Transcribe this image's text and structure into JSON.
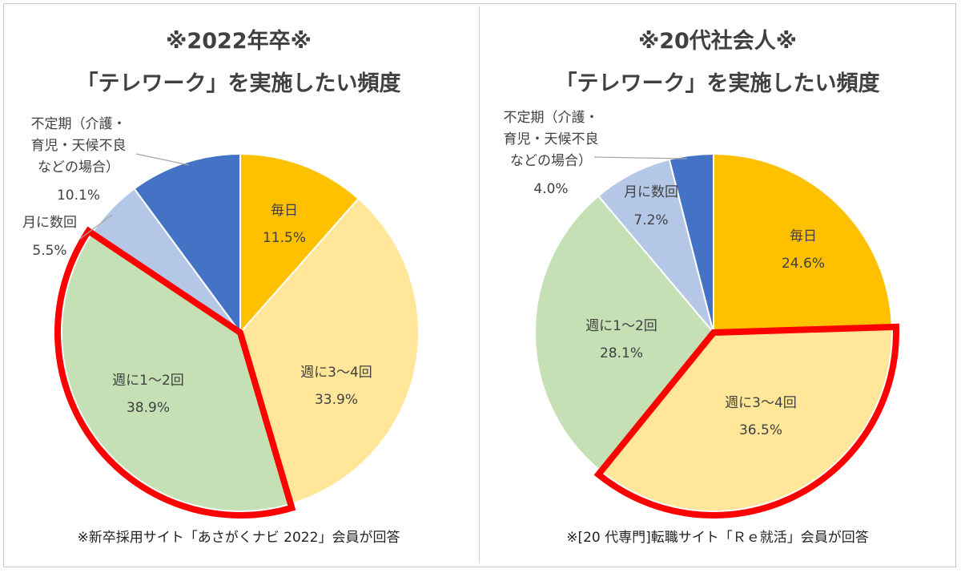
{
  "chart_data": [
    {
      "type": "pie",
      "title": "※2022年卒※",
      "subtitle": "「テレワーク」を実施したい頻度",
      "footnote": "※新卒採用サイト「あさがくナビ 2022」会員が回答",
      "labels": [
        "毎日",
        "週に3～4回",
        "週に1～2回",
        "月に数回",
        "不定期（介護・育児・天候不良などの場合）"
      ],
      "label_lines": [
        [
          "毎日"
        ],
        [
          "週に3～4回"
        ],
        [
          "週に1～2回"
        ],
        [
          "月に数回"
        ],
        [
          "不定期（介護・",
          "育児・天候不良",
          "などの場合）"
        ]
      ],
      "values": [
        11.5,
        33.9,
        38.9,
        5.5,
        10.1
      ],
      "value_labels": [
        "11.5%",
        "33.9%",
        "38.9%",
        "5.5%",
        "10.1%"
      ],
      "colors": [
        "#FFC000",
        "#FFE699",
        "#C5E0B4",
        "#B4C7E7",
        "#4472C4"
      ],
      "highlighted": "週に1～2回",
      "highlight_color": "#FF0000"
    },
    {
      "type": "pie",
      "title": "※20代社会人※",
      "subtitle": "「テレワーク」を実施したい頻度",
      "footnote": "※[20 代専門]転職サイト「Ｒｅ就活」会員が回答",
      "labels": [
        "毎日",
        "週に3～4回",
        "週に1～2回",
        "月に数回",
        "不定期（介護・育児・天候不良などの場合）"
      ],
      "label_lines": [
        [
          "毎日"
        ],
        [
          "週に3～4回"
        ],
        [
          "週に1～2回"
        ],
        [
          "月に数回"
        ],
        [
          "不定期（介護・",
          "育児・天候不良",
          "などの場合）"
        ]
      ],
      "values": [
        24.6,
        36.5,
        28.1,
        7.2,
        4.0
      ],
      "value_labels": [
        "24.6%",
        "36.5%",
        "28.1%",
        "7.2%",
        "4.0%"
      ],
      "colors": [
        "#FFC000",
        "#FFE699",
        "#C5E0B4",
        "#B4C7E7",
        "#4472C4"
      ],
      "highlighted": "週に3～4回",
      "highlight_color": "#FF0000"
    }
  ]
}
